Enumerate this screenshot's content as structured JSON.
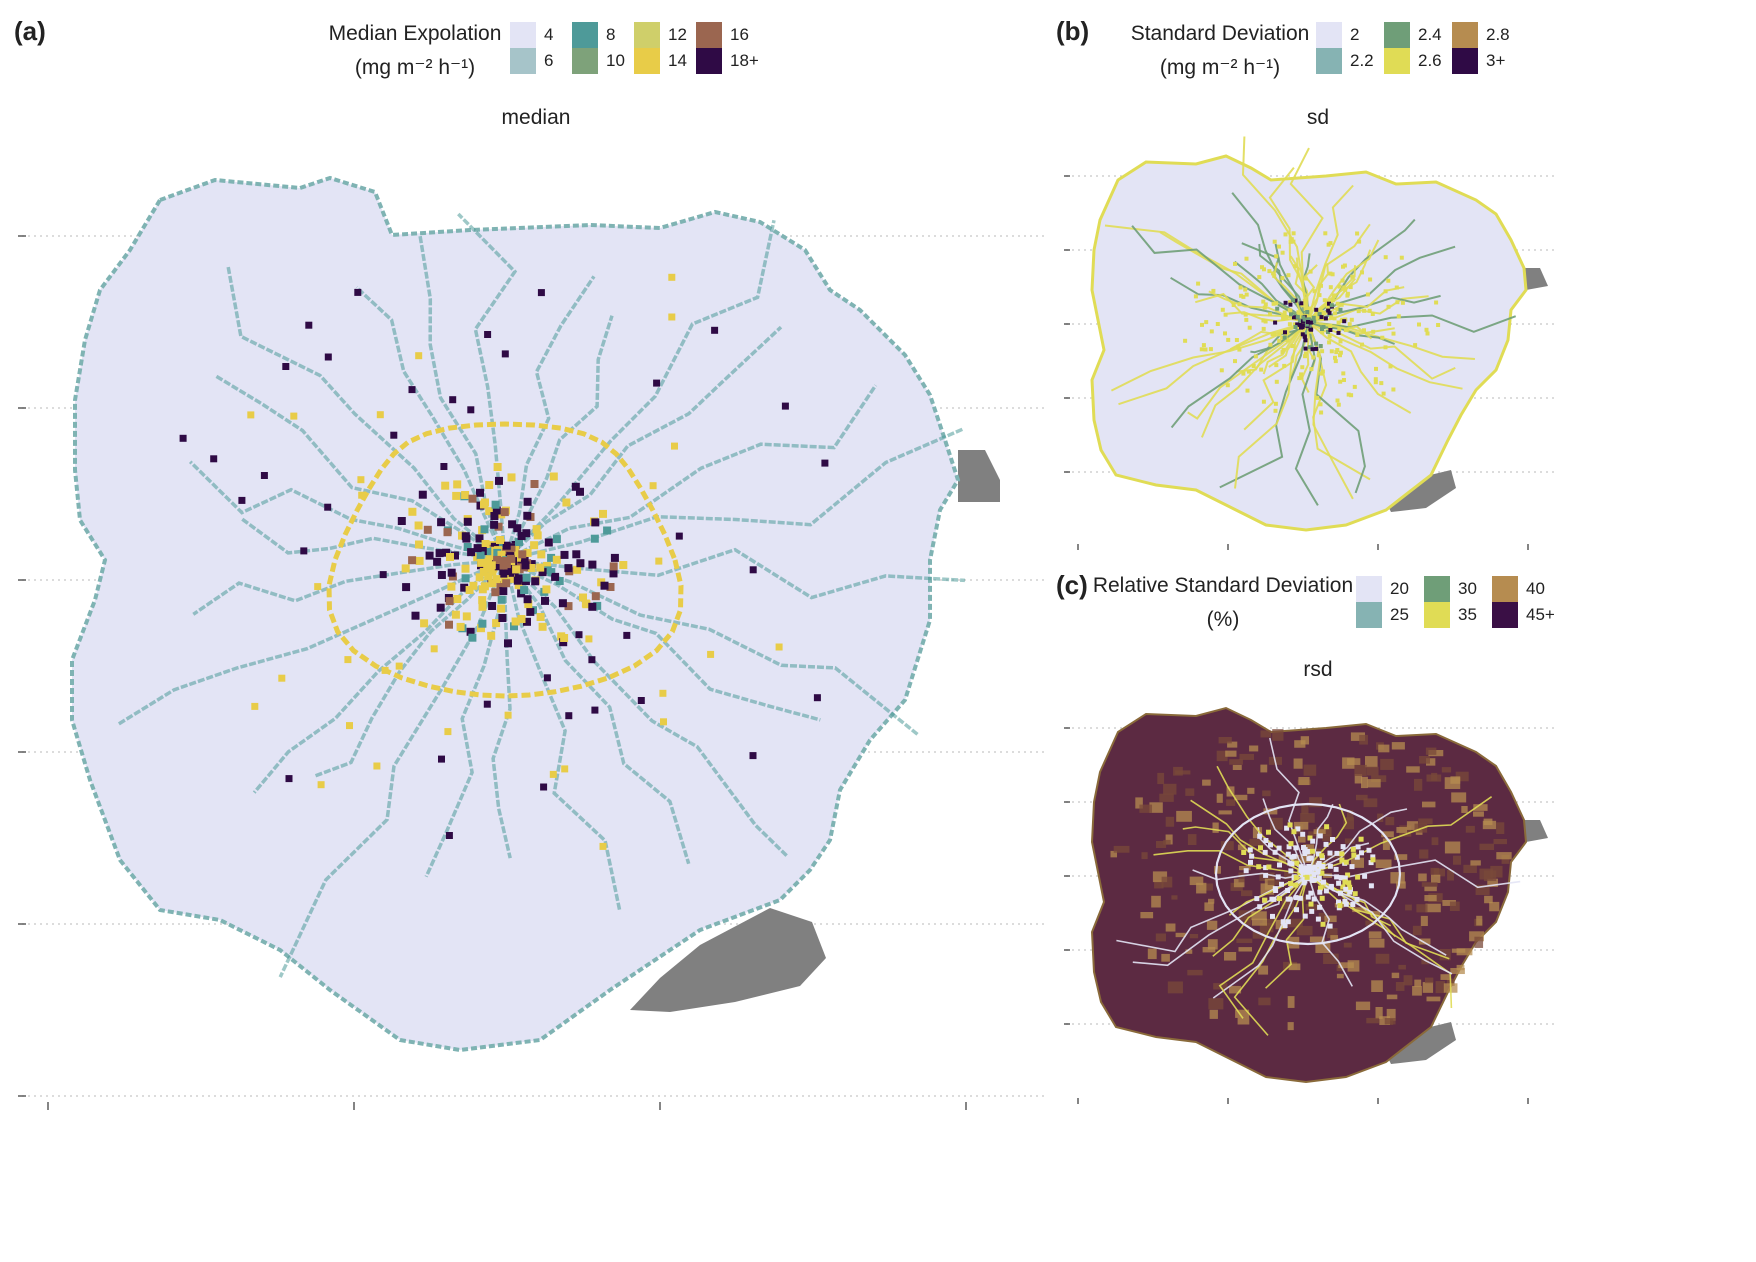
{
  "panels": {
    "a": {
      "letter": "(a)",
      "legend_title_line1": "Median Expolation",
      "legend_title_line2": "(mg m⁻² h⁻¹)",
      "legend": [
        {
          "label": "4",
          "color": "#e3e4f5"
        },
        {
          "label": "6",
          "color": "#a6c4c9"
        },
        {
          "label": "8",
          "color": "#4e9a99"
        },
        {
          "label": "10",
          "color": "#7ea27a"
        },
        {
          "label": "12",
          "color": "#cfcf6a"
        },
        {
          "label": "14",
          "color": "#e8cc48"
        },
        {
          "label": "16",
          "color": "#9b6650"
        },
        {
          "label": "18+",
          "color": "#2f0a45"
        }
      ],
      "facet_title": "median",
      "no_data_color": "#808080"
    },
    "b": {
      "letter": "(b)",
      "legend_title_line1": "Standard Deviation",
      "legend_title_line2": "(mg m⁻² h⁻¹)",
      "legend": [
        {
          "label": "2",
          "color": "#e3e4f5"
        },
        {
          "label": "2.2",
          "color": "#86b3b3"
        },
        {
          "label": "2.4",
          "color": "#6f9e78"
        },
        {
          "label": "2.6",
          "color": "#e0dc55"
        },
        {
          "label": "2.8",
          "color": "#b68c50"
        },
        {
          "label": "3+",
          "color": "#2f0a45"
        }
      ],
      "facet_title": "sd",
      "no_data_color": "#808080"
    },
    "c": {
      "letter": "(c)",
      "legend_title_line1": "Relative Standard Deviation",
      "legend_title_line2": "(%)",
      "legend": [
        {
          "label": "20",
          "color": "#e3e4f5"
        },
        {
          "label": "25",
          "color": "#86b3b3"
        },
        {
          "label": "30",
          "color": "#6f9e78"
        },
        {
          "label": "35",
          "color": "#e0dc55"
        },
        {
          "label": "40",
          "color": "#b68c50"
        },
        {
          "label": "45+",
          "color": "#3a0f45"
        }
      ],
      "facet_title": "rsd",
      "no_data_color": "#808080"
    }
  }
}
